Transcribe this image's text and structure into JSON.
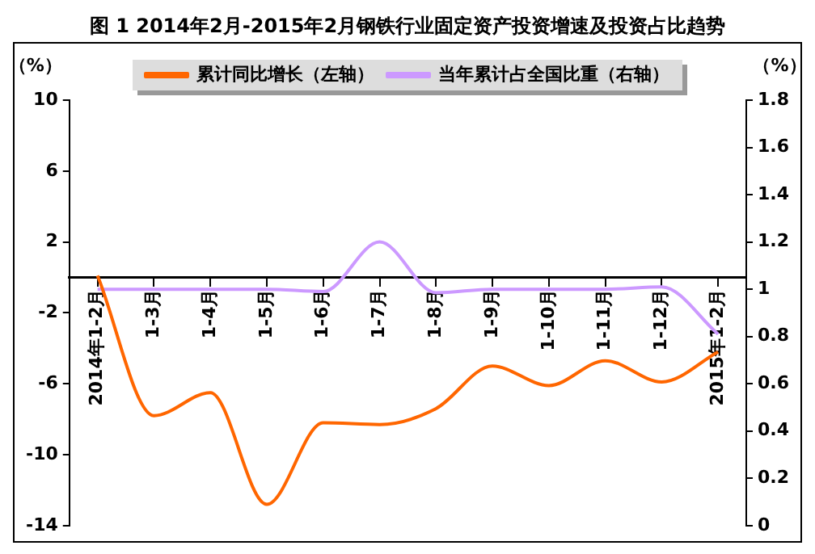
{
  "chart_data": {
    "type": "line",
    "title": "图 1  2014年2月-2015年2月钢铁行业固定资产投资增速及投资占比趋势",
    "ylabel": "（%）",
    "y2label": "（%）",
    "categories": [
      "2014年1-2月",
      "1-3月",
      "1-4月",
      "1-5月",
      "1-6月",
      "1-7月",
      "1-8月",
      "1-9月",
      "1-10月",
      "1-11月",
      "1-12月",
      "2015年1-2月"
    ],
    "series": [
      {
        "name": "累计同比增长（左轴）",
        "color": "#ff6600",
        "values": [
          0.1,
          -7.8,
          -6.5,
          -12.8,
          -8.2,
          -8.3,
          -7.4,
          -5.0,
          -6.1,
          -4.7,
          -5.9,
          -4.2
        ]
      },
      {
        "name": "当年累计占全国比重（右轴）",
        "color": "#cc99ff",
        "axis": "y2",
        "values": [
          1.0,
          1.0,
          1.0,
          1.0,
          0.99,
          1.2,
          0.985,
          1.0,
          1.0,
          1.0,
          1.01,
          0.81
        ]
      }
    ],
    "ylim": [
      -14,
      10
    ],
    "yticks": [
      -14,
      -10,
      -6,
      -2,
      2,
      6,
      10
    ],
    "y2lim": [
      0,
      1.8
    ],
    "y2ticks": [
      0,
      0.2,
      0.4,
      0.6,
      0.8,
      1,
      1.2,
      1.4,
      1.6,
      1.8
    ],
    "grid": false,
    "legend": "top",
    "marker": "none",
    "line_style": "solid"
  }
}
